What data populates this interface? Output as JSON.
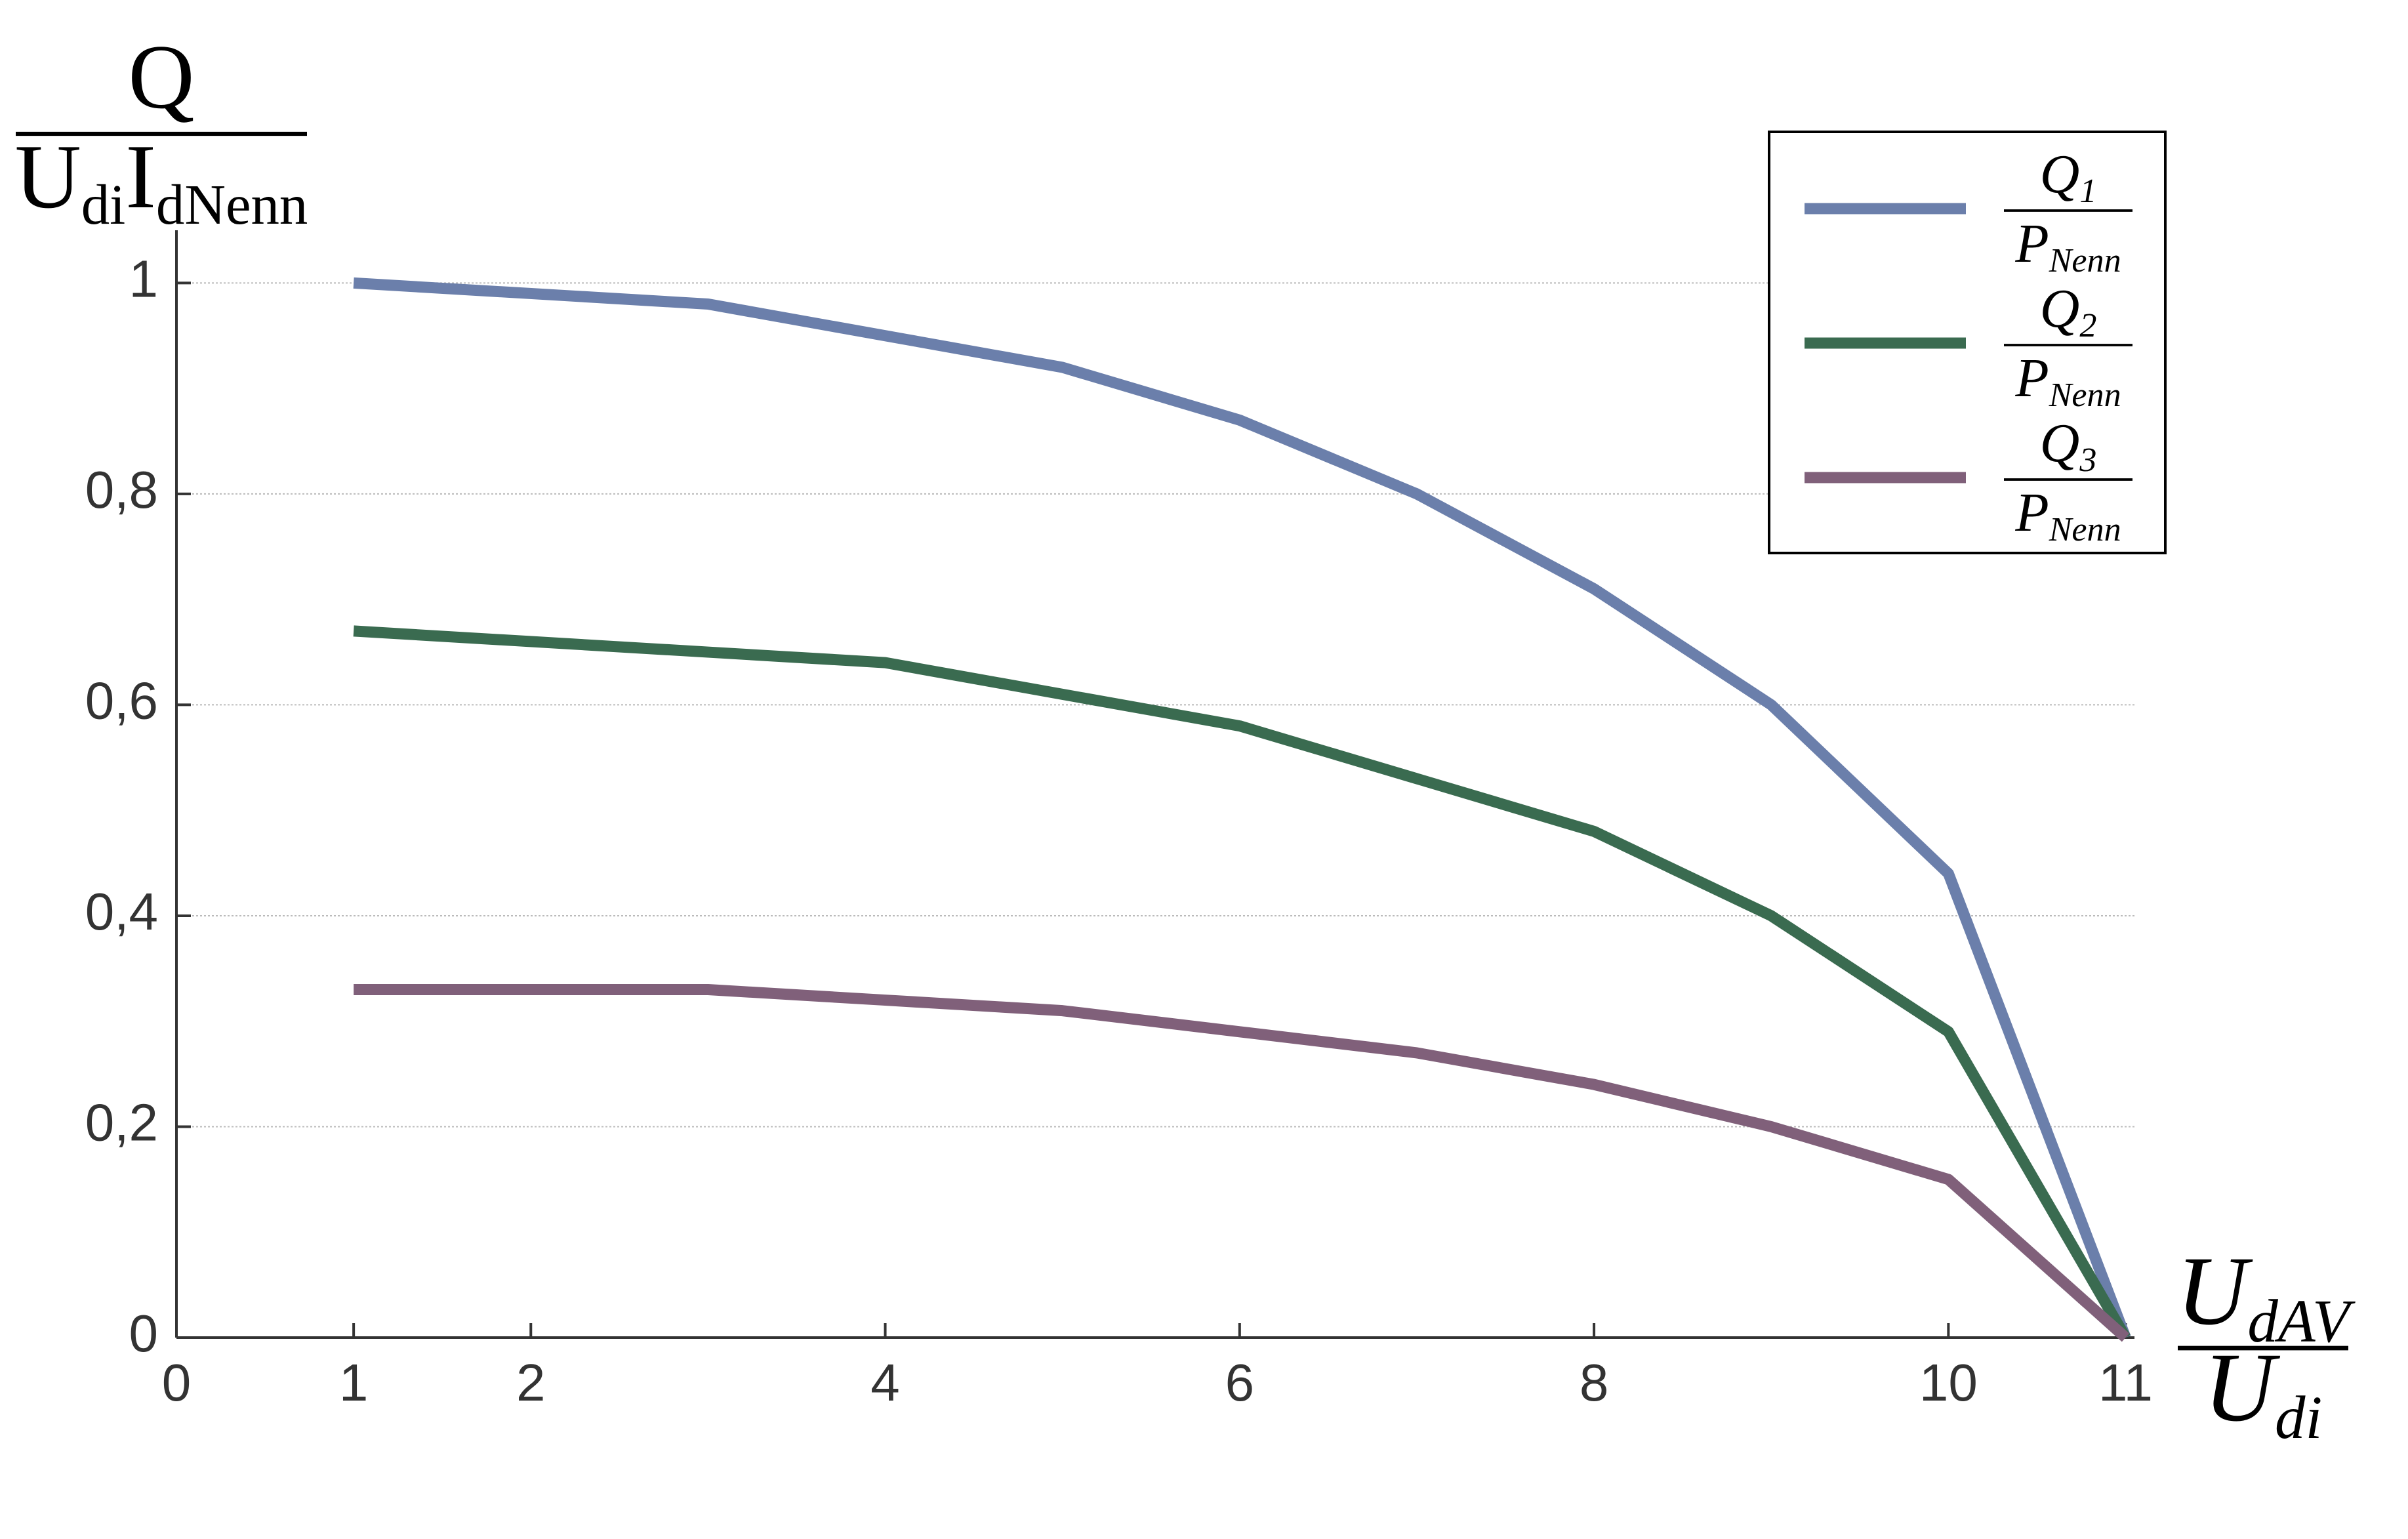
{
  "chart_data": {
    "type": "line",
    "ylabel": {
      "num": [
        "Q"
      ],
      "den": [
        "U",
        "di",
        "I",
        "dNenn"
      ]
    },
    "xlabel": {
      "num": [
        "U",
        "dAV"
      ],
      "den": [
        "U",
        "di"
      ]
    },
    "x": [
      1,
      3,
      4,
      5,
      6,
      7,
      8,
      9,
      10,
      11
    ],
    "series": [
      {
        "name": {
          "num": [
            "Q",
            "1"
          ],
          "den": [
            "P",
            "Nenn"
          ]
        },
        "color": "#6b7fab",
        "values": [
          1.0,
          0.98,
          0.95,
          0.92,
          0.87,
          0.8,
          0.71,
          0.6,
          0.44,
          0
        ]
      },
      {
        "name": {
          "num": [
            "Q",
            "2"
          ],
          "den": [
            "P",
            "Nenn"
          ]
        },
        "color": "#3a6b50",
        "values": [
          0.67,
          0.65,
          0.64,
          0.61,
          0.58,
          0.53,
          0.48,
          0.4,
          0.29,
          0
        ]
      },
      {
        "name": {
          "num": [
            "Q",
            "3"
          ],
          "den": [
            "P",
            "Nenn"
          ]
        },
        "color": "#80607a",
        "values": [
          0.33,
          0.33,
          0.32,
          0.31,
          0.29,
          0.27,
          0.24,
          0.2,
          0.15,
          0
        ]
      }
    ],
    "xlim": [
      0,
      11.05
    ],
    "xticks": [
      0,
      1,
      2,
      4,
      6,
      8,
      10,
      11
    ],
    "ylim": [
      0,
      1.05
    ],
    "yticks": [
      0,
      {
        "value": 0.2,
        "label": "0,2"
      },
      {
        "value": 0.4,
        "label": "0,4"
      },
      {
        "value": 0.6,
        "label": "0,6"
      },
      {
        "value": 0.8,
        "label": "0,8"
      },
      1
    ],
    "grid": true,
    "legend": "upper right"
  }
}
